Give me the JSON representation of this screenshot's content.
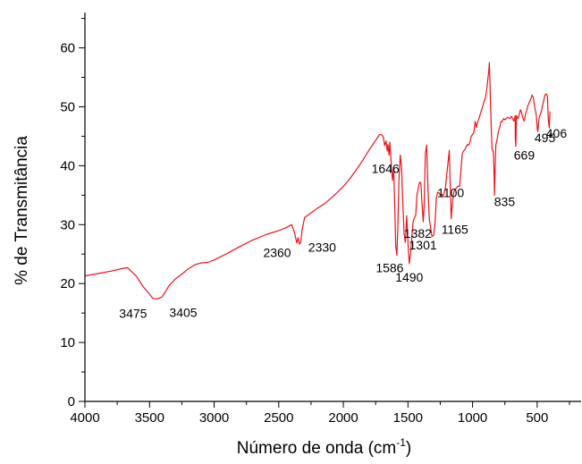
{
  "chart_data": {
    "type": "line",
    "title": "",
    "xlabel": "Número de onda (cm",
    "xlabel_sup": "-1",
    "xlabel_end": ")",
    "ylabel": "% de Transmitância",
    "xlim": [
      4000,
      160
    ],
    "ylim": [
      0,
      66
    ],
    "x_ticks": [
      4000,
      3500,
      3000,
      2500,
      2000,
      1500,
      1000,
      500
    ],
    "y_ticks": [
      0,
      10,
      20,
      30,
      40,
      50,
      60
    ],
    "grid": false,
    "legend": "none",
    "line_color": "#e8141b",
    "series": [
      {
        "x": [
          4000,
          3900,
          3800,
          3700,
          3670,
          3600,
          3550,
          3500,
          3475,
          3440,
          3405,
          3380,
          3350,
          3300,
          3250,
          3200,
          3150,
          3100,
          3050,
          3000,
          2900,
          2800,
          2700,
          2600,
          2500,
          2450,
          2400,
          2380,
          2360,
          2350,
          2340,
          2330,
          2320,
          2300,
          2250,
          2200,
          2150,
          2100,
          2050,
          2000,
          1950,
          1900,
          1850,
          1800,
          1760,
          1740,
          1720,
          1700,
          1690,
          1680,
          1670,
          1660,
          1655,
          1646,
          1640,
          1630,
          1620,
          1610,
          1600,
          1595,
          1586,
          1578,
          1570,
          1560,
          1550,
          1540,
          1530,
          1520,
          1510,
          1500,
          1490,
          1480,
          1470,
          1460,
          1450,
          1440,
          1430,
          1420,
          1410,
          1400,
          1392,
          1382,
          1375,
          1365,
          1355,
          1345,
          1335,
          1325,
          1315,
          1301,
          1290,
          1280,
          1270,
          1260,
          1250,
          1240,
          1230,
          1220,
          1210,
          1200,
          1190,
          1180,
          1175,
          1165,
          1155,
          1145,
          1135,
          1125,
          1115,
          1100,
          1090,
          1080,
          1070,
          1060,
          1050,
          1040,
          1030,
          1020,
          1010,
          1000,
          990,
          980,
          970,
          960,
          950,
          940,
          930,
          920,
          910,
          900,
          890,
          880,
          875,
          870,
          865,
          860,
          855,
          850,
          845,
          840,
          835,
          830,
          825,
          820,
          810,
          800,
          790,
          780,
          770,
          760,
          750,
          740,
          730,
          720,
          710,
          700,
          690,
          680,
          675,
          670,
          669,
          665,
          660,
          650,
          640,
          630,
          620,
          610,
          600,
          590,
          580,
          570,
          560,
          550,
          540,
          530,
          520,
          510,
          505,
          500,
          495,
          490,
          485,
          480,
          470,
          460,
          450,
          440,
          430,
          420,
          415,
          410,
          406,
          403,
          400
        ],
        "y": [
          21.3,
          21.7,
          22.1,
          22.6,
          22.7,
          21.2,
          19.5,
          18.2,
          17.5,
          17.4,
          17.7,
          18.5,
          19.6,
          20.8,
          21.6,
          22.5,
          23.2,
          23.5,
          23.6,
          24.0,
          25.1,
          26.3,
          27.4,
          28.3,
          29.0,
          29.4,
          30.0,
          28.8,
          26.9,
          27.8,
          26.7,
          27.1,
          29.0,
          31.2,
          32.0,
          32.8,
          33.5,
          34.4,
          35.4,
          36.5,
          37.8,
          39.3,
          40.9,
          42.7,
          44.0,
          44.6,
          45.3,
          45.2,
          44.8,
          43.4,
          44.2,
          42.5,
          43.6,
          41.8,
          44.0,
          40.6,
          37.5,
          39.6,
          31.0,
          26.4,
          24.8,
          30.0,
          37.5,
          41.8,
          39.8,
          34.0,
          28.4,
          27.0,
          31.5,
          27.0,
          23.4,
          25.0,
          28.0,
          30.5,
          31.2,
          31.6,
          35.0,
          36.2,
          37.2,
          37.1,
          34.0,
          30.5,
          33.0,
          42.0,
          43.5,
          36.0,
          31.0,
          29.6,
          28.0,
          28.2,
          30.5,
          34.6,
          35.5,
          35.4,
          35.0,
          35.2,
          34.9,
          35.3,
          36.2,
          38.5,
          40.5,
          42.6,
          38.0,
          31.0,
          34.0,
          35.5,
          36.0,
          36.2,
          36.5,
          36.5,
          39.2,
          42.0,
          42.5,
          42.7,
          43.2,
          43.6,
          43.5,
          44.0,
          45.0,
          45.3,
          45.6,
          47.5,
          46.5,
          47.5,
          48.0,
          48.8,
          49.5,
          50.2,
          51.0,
          51.5,
          53.0,
          55.0,
          56.0,
          57.5,
          54.0,
          50.0,
          46.0,
          43.0,
          42.5,
          42.5,
          40.0,
          35.0,
          39.8,
          43.5,
          44.5,
          45.8,
          46.5,
          47.5,
          47.5,
          48.0,
          47.8,
          48.0,
          48.2,
          48.1,
          48.0,
          48.4,
          48.0,
          47.6,
          48.0,
          48.5,
          44.7,
          43.3,
          48.5,
          48.0,
          48.5,
          49.5,
          49.0,
          48.0,
          47.6,
          48.8,
          49.5,
          50.3,
          50.8,
          51.3,
          52.0,
          51.6,
          50.0,
          49.0,
          48.2,
          46.3,
          45.8,
          47.0,
          48.0,
          48.5,
          49.0,
          50.0,
          51.0,
          52.0,
          52.2,
          51.7,
          48.5,
          47.0,
          46.4,
          48.3,
          49.2
        ]
      }
    ],
    "annotations": [
      {
        "text": "3475",
        "x": 3475,
        "y": 17.5
      },
      {
        "text": "3405",
        "x": 3405,
        "y": 17.7
      },
      {
        "text": "2360",
        "x": 2360,
        "y": 26.9
      },
      {
        "text": "2330",
        "x": 2330,
        "y": 27.1
      },
      {
        "text": "1646",
        "x": 1646,
        "y": 41.8
      },
      {
        "text": "1586",
        "x": 1586,
        "y": 24.8
      },
      {
        "text": "1490",
        "x": 1490,
        "y": 23.4
      },
      {
        "text": "1382",
        "x": 1382,
        "y": 30.5
      },
      {
        "text": "1301",
        "x": 1301,
        "y": 28.2
      },
      {
        "text": "1165",
        "x": 1165,
        "y": 31.0
      },
      {
        "text": "1100",
        "x": 1100,
        "y": 36.5
      },
      {
        "text": "835",
        "x": 835,
        "y": 35.0
      },
      {
        "text": "669",
        "x": 669,
        "y": 43.3
      },
      {
        "text": "495",
        "x": 495,
        "y": 45.8
      },
      {
        "text": "406",
        "x": 406,
        "y": 46.4
      }
    ]
  }
}
